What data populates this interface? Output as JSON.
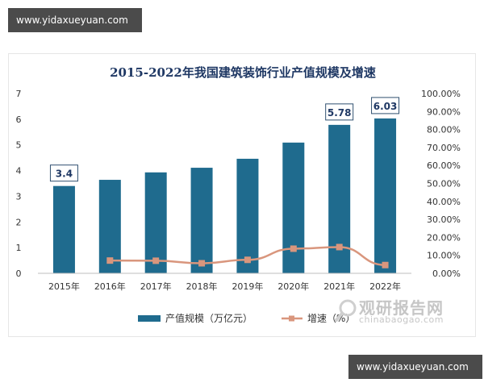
{
  "watermarks": {
    "top": "www.yidaxueyuan.com",
    "bottom": "www.yidaxueyuan.com"
  },
  "source_logo": {
    "name": "观研报告网",
    "url": "chinabaogao.com"
  },
  "colors": {
    "bar": "#1f6b8e",
    "line": "#d9967d",
    "title": "#1f3864",
    "axis_text": "#333333"
  },
  "chart_data": {
    "type": "bar",
    "title": "2015-2022年我国建筑装饰行业产值规模及增速",
    "categories": [
      "2015年",
      "2016年",
      "2017年",
      "2018年",
      "2019年",
      "2020年",
      "2021年",
      "2022年"
    ],
    "y_left": {
      "range": [
        0,
        7
      ],
      "ticks": [
        "0",
        "1",
        "2",
        "3",
        "4",
        "5",
        "6",
        "7"
      ]
    },
    "y_right": {
      "range": [
        0,
        100
      ],
      "ticks": [
        "0.00%",
        "10.00%",
        "20.00%",
        "30.00%",
        "40.00%",
        "50.00%",
        "60.00%",
        "70.00%",
        "80.00%",
        "90.00%",
        "100.00%"
      ]
    },
    "series": [
      {
        "name": "产值规模（万亿元）",
        "type": "bar",
        "axis": "left",
        "values": [
          3.4,
          3.64,
          3.93,
          4.11,
          4.46,
          5.09,
          5.78,
          6.03
        ]
      },
      {
        "name": "增速（%）",
        "type": "line",
        "axis": "right",
        "values": [
          null,
          7.1,
          7.0,
          5.6,
          7.5,
          13.7,
          14.6,
          4.6
        ]
      }
    ],
    "data_labels": [
      {
        "index": 0,
        "text": "3.4"
      },
      {
        "index": 6,
        "text": "5.78"
      },
      {
        "index": 7,
        "text": "6.03"
      }
    ],
    "legend_position": "bottom",
    "grid": false
  }
}
